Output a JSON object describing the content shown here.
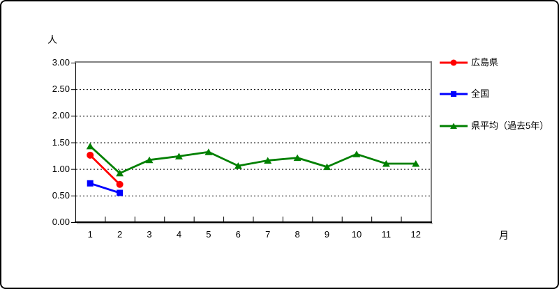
{
  "chart_data": {
    "type": "line",
    "title": "",
    "ylabel": "人",
    "xlabel": "月",
    "ylim": [
      0,
      3
    ],
    "yticks": [
      "3.00",
      "2.50",
      "2.00",
      "1.50",
      "1.00",
      "0.50",
      "0.00"
    ],
    "categories": [
      "1",
      "2",
      "3",
      "4",
      "5",
      "6",
      "7",
      "8",
      "9",
      "10",
      "11",
      "12"
    ],
    "grid": "horizontal-dashed",
    "legend_position": "right",
    "axis_color": "#000000",
    "plot_border_color": "#808080",
    "series": [
      {
        "name": "広島県",
        "color": "#ff0000",
        "marker": "circle",
        "values": [
          1.26,
          0.71
        ]
      },
      {
        "name": "全国",
        "color": "#0000ff",
        "marker": "square",
        "values": [
          0.73,
          0.55
        ]
      },
      {
        "name": "県平均（過去5年）",
        "color": "#008000",
        "marker": "triangle",
        "values": [
          1.43,
          0.92,
          1.17,
          1.24,
          1.32,
          1.06,
          1.16,
          1.21,
          1.04,
          1.28,
          1.1,
          1.1
        ]
      }
    ]
  }
}
